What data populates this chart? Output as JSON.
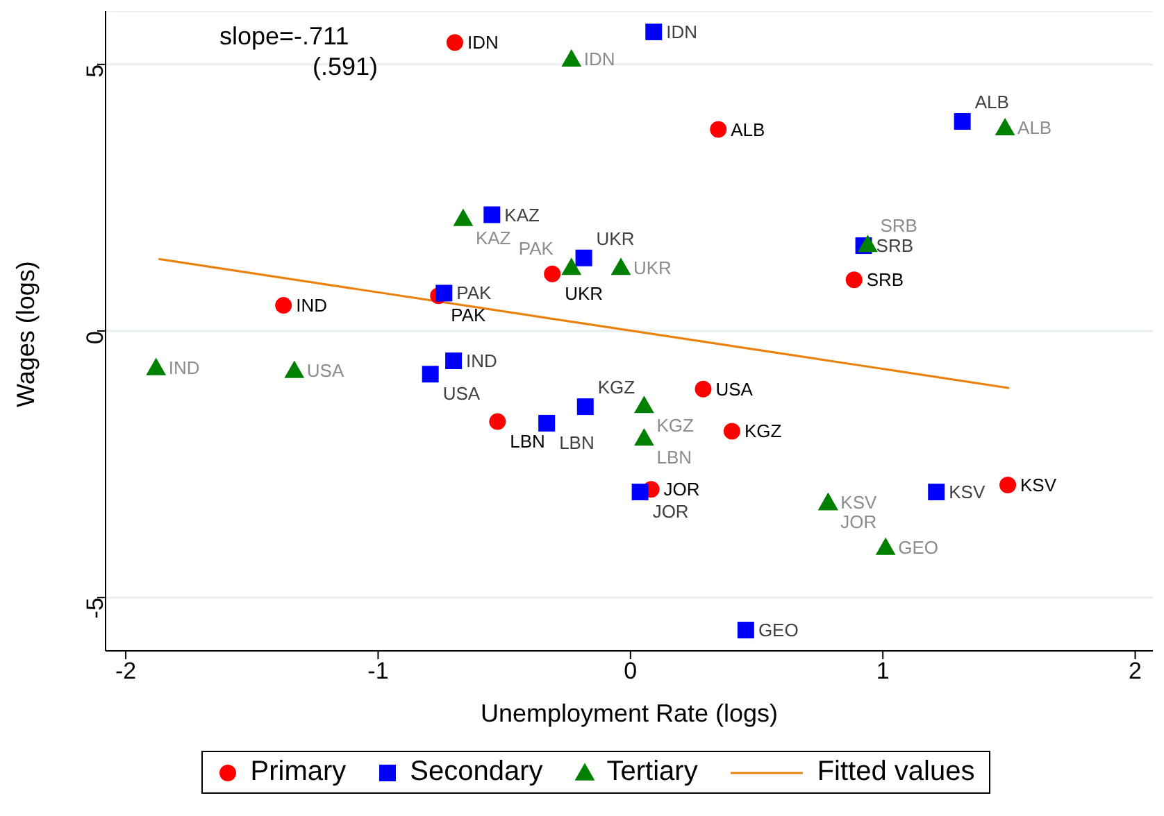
{
  "chart_data": {
    "type": "scatter",
    "xlabel": "Unemployment Rate (logs)",
    "ylabel": "Wages (logs)",
    "annotations": [
      "slope=-.711",
      "(.591)"
    ],
    "xlim": [
      -2.08,
      2.07
    ],
    "ylim": [
      -6,
      6
    ],
    "xticks": [
      -2,
      -1,
      0,
      1,
      2
    ],
    "yticks": [
      -5,
      0,
      5
    ],
    "grid": "y",
    "legend": "bottom",
    "series": [
      {
        "name": "Primary",
        "color": "#ff0000",
        "marker": "circle",
        "x": [
          -0.696,
          0.348,
          -0.31,
          -0.761,
          -1.375,
          0.886,
          0.288,
          0.402,
          -0.527,
          0.082,
          1.495
        ],
        "values": [
          5.41,
          3.78,
          1.07,
          0.66,
          0.48,
          0.96,
          -1.09,
          -1.88,
          -1.7,
          -2.97,
          -2.89
        ],
        "value_labels": [
          "IDN",
          "ALB",
          "UKR",
          "PAK",
          "IND",
          "SRB",
          "USA",
          "KGZ",
          "LBN",
          "JOR",
          "KSV"
        ]
      },
      {
        "name": "Secondary",
        "color": "#0000ff",
        "marker": "square",
        "x": [
          0.092,
          1.315,
          -0.549,
          -0.185,
          0.924,
          -0.739,
          -0.701,
          -0.793,
          -0.179,
          -0.332,
          0.038,
          1.212,
          0.457
        ],
        "values": [
          5.61,
          3.93,
          2.18,
          1.37,
          1.6,
          0.71,
          -0.56,
          -0.81,
          -1.42,
          -1.73,
          -3.02,
          -3.02,
          -5.61
        ],
        "value_labels": [
          "IDN",
          "ALB",
          "KAZ",
          "UKR",
          "SRB",
          "PAK",
          "IND",
          "USA",
          "KGZ",
          "LBN",
          "JOR",
          "KSV",
          "GEO"
        ]
      },
      {
        "name": "Tertiary",
        "color": "#008000",
        "marker": "triangle",
        "x": [
          -0.234,
          1.484,
          -0.663,
          -0.038,
          -0.234,
          0.94,
          -1.88,
          -1.332,
          0.054,
          0.054,
          0.783,
          0.783,
          1.011
        ],
        "values": [
          5.1,
          3.81,
          2.11,
          1.19,
          1.19,
          1.62,
          -0.69,
          -0.74,
          -1.4,
          -2.01,
          -3.22,
          -3.22,
          -4.06
        ],
        "value_labels": [
          "IDN",
          "ALB",
          "KAZ",
          "UKR",
          "PAK",
          "SRB",
          "IND",
          "USA",
          "KGZ",
          "LBN",
          "KSV",
          "JOR",
          "GEO"
        ]
      },
      {
        "name": "Fitted values",
        "type": "line",
        "color": "#e8820c",
        "marker": "none",
        "line_style": "solid",
        "x": [
          -1.87,
          1.5
        ],
        "values": [
          1.35,
          -1.07
        ]
      }
    ]
  }
}
